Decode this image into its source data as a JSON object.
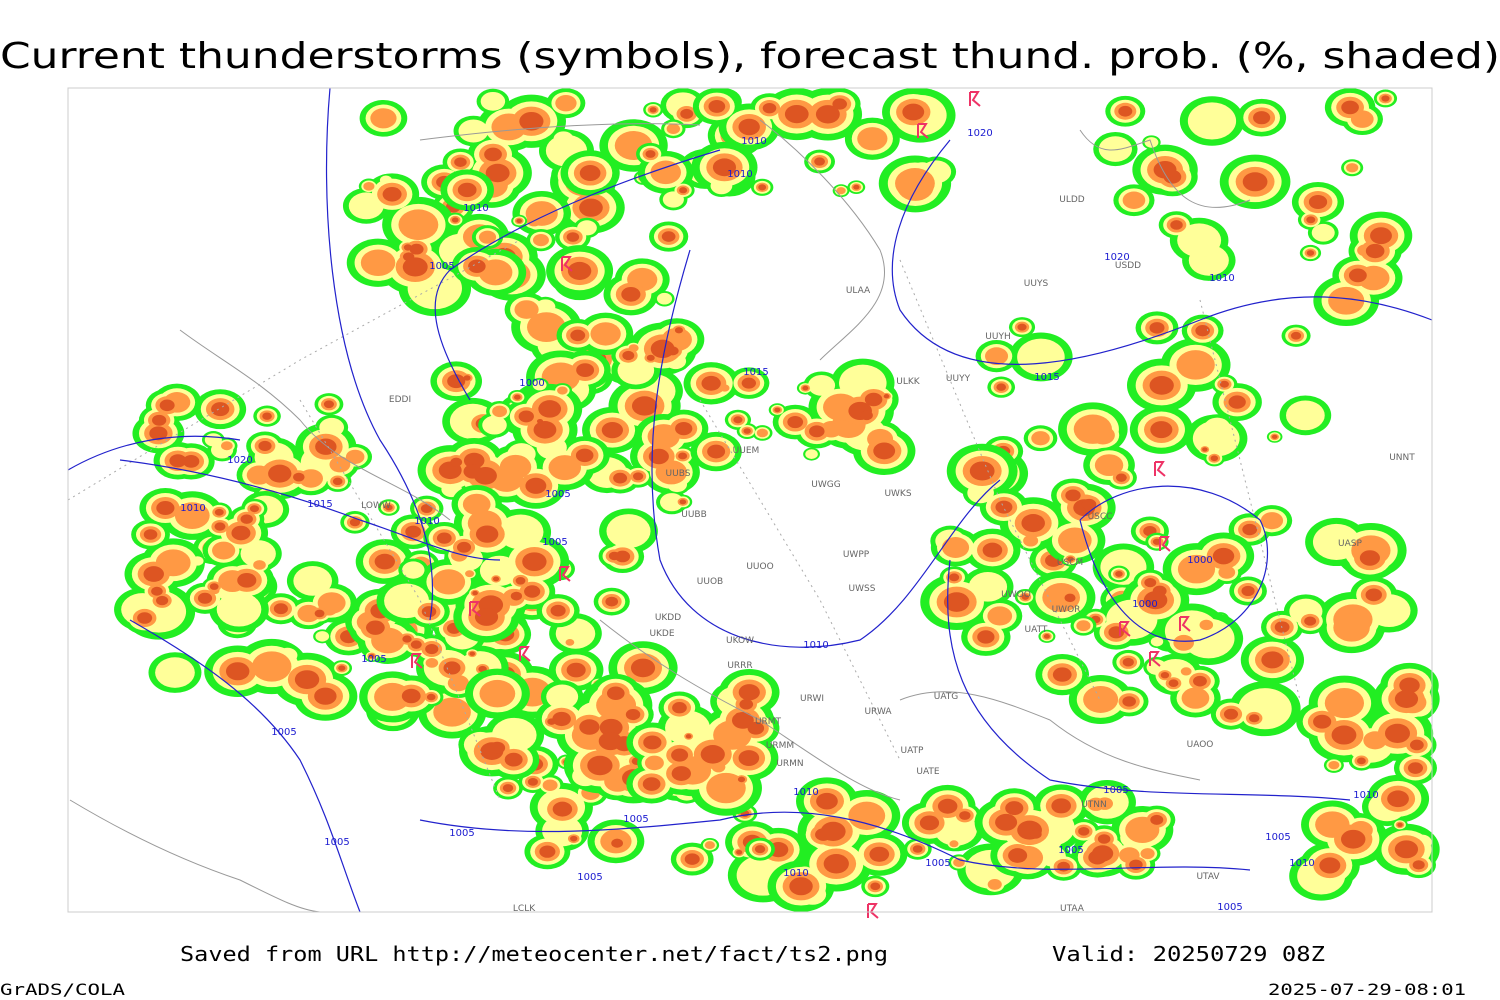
{
  "title": "Current thunderstorms (symbols), forecast thund. prob. (%, shaded)",
  "footer": {
    "source": "Saved from URL http://meteocenter.net/fact/ts2.png",
    "valid": "Valid: 20250729 08Z",
    "software": "GrADS/COLA",
    "timestamp": "2025-07-29-08:01"
  },
  "isobar_labels": [
    1010,
    1010,
    1020,
    1010,
    1005,
    1020,
    1010,
    1000,
    1015,
    1015,
    1020,
    1005,
    1010,
    1015,
    1010,
    1005,
    1000,
    1000,
    1010,
    1005,
    1005,
    1010,
    1005,
    1010,
    1005,
    1005,
    1005,
    1005,
    1005,
    1005,
    1010,
    1005,
    1010,
    1005
  ],
  "stations": [
    "ULDD",
    "ULAA",
    "UUYS",
    "UUYH",
    "ULKK",
    "UUYY",
    "UUEM",
    "UWGG",
    "UWKS",
    "UUBS",
    "UUBB",
    "UWPP",
    "UUOO",
    "UUOB",
    "UWSS",
    "UKDD",
    "UKDE",
    "UKOW",
    "URRR",
    "URWI",
    "UATG",
    "URWA",
    "URMT",
    "URMM",
    "URMN",
    "UATP",
    "UATE",
    "UTNN",
    "UAOO",
    "USCC",
    "USCM",
    "UWOO",
    "UWOR",
    "UATT",
    "UASP",
    "UNNT",
    "USDD",
    "UTAV",
    "UTAA",
    "LOWW",
    "EDDI",
    "LCLK"
  ]
}
